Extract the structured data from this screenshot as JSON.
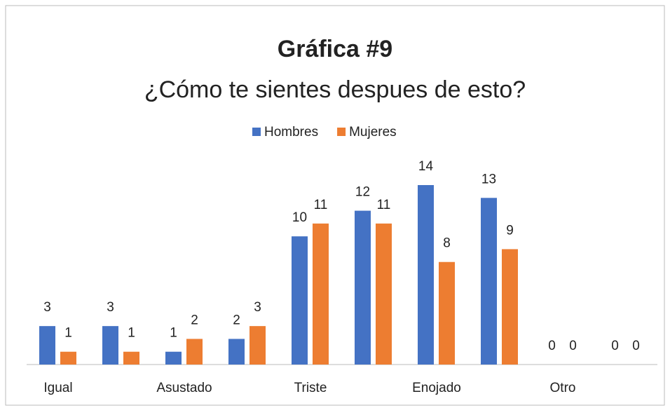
{
  "chart_data": {
    "type": "bar",
    "title": "Gráfica #9",
    "subtitle": "¿Cómo te sientes despues de esto?",
    "categories": [
      "Igual",
      null,
      "Asustado",
      null,
      "Triste",
      null,
      "Enojado",
      null,
      "Otro",
      null
    ],
    "series": [
      {
        "name": "Hombres",
        "color": "#4472c4",
        "values": [
          3,
          3,
          1,
          2,
          10,
          12,
          14,
          13,
          0,
          0
        ]
      },
      {
        "name": "Mujeres",
        "color": "#ed7d31",
        "values": [
          1,
          1,
          2,
          3,
          11,
          11,
          8,
          9,
          0,
          0
        ]
      }
    ],
    "legend": "top"
  }
}
